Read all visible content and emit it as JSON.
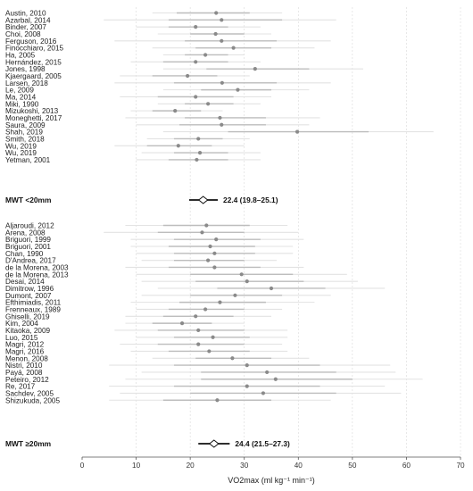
{
  "chart_data": {
    "type": "forest",
    "x_axis": {
      "label": "VO2max (ml kg⁻¹ min⁻¹)",
      "xlim": [
        0,
        70
      ],
      "ticks": [
        0,
        10,
        20,
        30,
        40,
        50,
        60,
        70
      ],
      "grid": true
    },
    "groups": [
      {
        "name": "MWT <20mm",
        "pooled": {
          "label": "MWT <20mm",
          "estimate": 22.4,
          "lower": 19.8,
          "upper": 25.1,
          "text": "22.4 (19.8–25.1)"
        },
        "studies": [
          {
            "name": "Austin, 2010",
            "mean": 24.8,
            "ci": [
              17.5,
              31.0
            ],
            "range": [
              13.0,
              37.0
            ]
          },
          {
            "name": "Azarbal, 2014",
            "mean": 25.8,
            "ci": [
              16.0,
              37.0
            ],
            "range": [
              4.0,
              47.0
            ]
          },
          {
            "name": "Binder, 2007",
            "mean": 21.0,
            "ci": [
              16.0,
              27.0
            ],
            "range": [
              10.0,
              33.0
            ]
          },
          {
            "name": "Choi, 2008",
            "mean": 24.7,
            "ci": [
              20.0,
              30.0
            ],
            "range": [
              14.0,
              35.0
            ]
          },
          {
            "name": "Ferguson, 2016",
            "mean": 25.8,
            "ci": [
              19.0,
              36.0
            ],
            "range": [
              6.0,
              46.0
            ]
          },
          {
            "name": "Finocchiaro, 2015",
            "mean": 28.0,
            "ci": [
              21.0,
              35.0
            ],
            "range": [
              13.0,
              43.0
            ]
          },
          {
            "name": "Ha, 2005",
            "mean": 22.8,
            "ci": [
              19.0,
              27.0
            ],
            "range": [
              15.0,
              30.0
            ]
          },
          {
            "name": "Hernández, 2015",
            "mean": 21.0,
            "ci": [
              15.0,
              27.0
            ],
            "range": [
              9.0,
              33.0
            ]
          },
          {
            "name": "Jones, 1998",
            "mean": 32.0,
            "ci": [
              23.0,
              42.0
            ],
            "range": [
              15.0,
              52.0
            ]
          },
          {
            "name": "Kjaergaard, 2005",
            "mean": 19.5,
            "ci": [
              13.0,
              25.0
            ],
            "range": [
              7.0,
              31.0
            ]
          },
          {
            "name": "Larsen, 2018",
            "mean": 25.9,
            "ci": [
              17.0,
              36.0
            ],
            "range": [
              6.0,
              46.0
            ]
          },
          {
            "name": "Le, 2009",
            "mean": 28.8,
            "ci": [
              22.0,
              35.0
            ],
            "range": [
              15.0,
              42.0
            ]
          },
          {
            "name": "Ma, 2014",
            "mean": 21.0,
            "ci": [
              14.0,
              28.0
            ],
            "range": [
              7.0,
              35.0
            ]
          },
          {
            "name": "Miki, 1990",
            "mean": 23.3,
            "ci": [
              19.0,
              28.0
            ],
            "range": [
              14.0,
              33.0
            ]
          },
          {
            "name": "Mizukoshi, 2013",
            "mean": 17.2,
            "ci": [
              13.0,
              22.0
            ],
            "range": [
              9.0,
              26.0
            ]
          },
          {
            "name": "Moneghetti, 2017",
            "mean": 25.5,
            "ci": [
              19.0,
              34.0
            ],
            "range": [
              8.0,
              44.0
            ]
          },
          {
            "name": "Saura, 2009",
            "mean": 25.8,
            "ci": [
              18.0,
              34.0
            ],
            "range": [
              10.0,
              42.0
            ]
          },
          {
            "name": "Shah, 2019",
            "mean": 39.8,
            "ci": [
              27.0,
              53.0
            ],
            "range": [
              15.0,
              65.0
            ]
          },
          {
            "name": "Smith, 2018",
            "mean": 21.5,
            "ci": [
              17.0,
              26.0
            ],
            "range": [
              12.0,
              31.0
            ]
          },
          {
            "name": "Wu, 2019",
            "mean": 17.8,
            "ci": [
              12.0,
              24.0
            ],
            "range": [
              6.0,
              30.0
            ]
          },
          {
            "name": "Wu, 2019",
            "mean": 21.8,
            "ci": [
              17.0,
              27.0
            ],
            "range": [
              11.0,
              33.0
            ]
          },
          {
            "name": "Yetman, 2001",
            "mean": 21.2,
            "ci": [
              16.0,
              27.0
            ],
            "range": [
              10.0,
              33.0
            ]
          }
        ]
      },
      {
        "name": "MWT ≥20mm",
        "pooled": {
          "label": "MWT ≥20mm",
          "estimate": 24.4,
          "lower": 21.5,
          "upper": 27.3,
          "text": "24.4 (21.5–27.3)"
        },
        "studies": [
          {
            "name": "Aljaroudi, 2012",
            "mean": 23.0,
            "ci": [
              15.0,
              31.0
            ],
            "range": [
              8.0,
              38.0
            ]
          },
          {
            "name": "Arena, 2008",
            "mean": 22.2,
            "ci": [
              14.0,
              30.0
            ],
            "range": [
              4.0,
              40.0
            ]
          },
          {
            "name": "Briguori, 1999",
            "mean": 24.8,
            "ci": [
              17.0,
              33.0
            ],
            "range": [
              9.0,
              41.0
            ]
          },
          {
            "name": "Briguori, 2001",
            "mean": 23.7,
            "ci": [
              16.0,
              32.0
            ],
            "range": [
              9.0,
              39.0
            ]
          },
          {
            "name": "Chan, 1990",
            "mean": 24.5,
            "ci": [
              17.0,
              32.0
            ],
            "range": [
              10.0,
              39.0
            ]
          },
          {
            "name": "D'Andrea, 2017",
            "mean": 23.3,
            "ci": [
              17.0,
              30.0
            ],
            "range": [
              11.0,
              36.0
            ]
          },
          {
            "name": "de la Morena, 2003",
            "mean": 24.5,
            "ci": [
              16.0,
              33.0
            ],
            "range": [
              8.0,
              41.0
            ]
          },
          {
            "name": "de la Morena, 2013",
            "mean": 29.5,
            "ci": [
              20.0,
              39.0
            ],
            "range": [
              10.0,
              49.0
            ]
          },
          {
            "name": "Desai, 2014",
            "mean": 30.5,
            "ci": [
              21.0,
              41.0
            ],
            "range": [
              11.0,
              51.0
            ]
          },
          {
            "name": "Dimitrow, 1996",
            "mean": 35.0,
            "ci": [
              25.0,
              45.0
            ],
            "range": [
              14.0,
              56.0
            ]
          },
          {
            "name": "Dumont, 2007",
            "mean": 28.3,
            "ci": [
              20.0,
              37.0
            ],
            "range": [
              11.0,
              46.0
            ]
          },
          {
            "name": "Efthimiadis, 2011",
            "mean": 25.5,
            "ci": [
              18.0,
              34.0
            ],
            "range": [
              9.0,
              43.0
            ]
          },
          {
            "name": "Frenneaux, 1989",
            "mean": 22.8,
            "ci": [
              16.0,
              30.0
            ],
            "range": [
              10.0,
              37.0
            ]
          },
          {
            "name": "Ghiselli, 2019",
            "mean": 21.0,
            "ci": [
              15.0,
              28.0
            ],
            "range": [
              8.0,
              35.0
            ]
          },
          {
            "name": "Kim, 2004",
            "mean": 18.5,
            "ci": [
              13.0,
              24.0
            ],
            "range": [
              8.0,
              30.0
            ]
          },
          {
            "name": "Kitaoka, 2009",
            "mean": 21.5,
            "ci": [
              14.0,
              30.0
            ],
            "range": [
              6.0,
              38.0
            ]
          },
          {
            "name": "Luo, 2015",
            "mean": 24.2,
            "ci": [
              17.0,
              31.0
            ],
            "range": [
              10.0,
              38.0
            ]
          },
          {
            "name": "Magri, 2012",
            "mean": 21.5,
            "ci": [
              14.0,
              30.0
            ],
            "range": [
              7.0,
              37.0
            ]
          },
          {
            "name": "Magri, 2016",
            "mean": 23.5,
            "ci": [
              16.0,
              31.0
            ],
            "range": [
              9.0,
              38.0
            ]
          },
          {
            "name": "Menon, 2008",
            "mean": 27.8,
            "ci": [
              21.0,
              35.0
            ],
            "range": [
              13.0,
              42.0
            ]
          },
          {
            "name": "Nistri, 2010",
            "mean": 30.5,
            "ci": [
              17.0,
              44.0
            ],
            "range": [
              5.0,
              57.0
            ]
          },
          {
            "name": "Payá, 2008",
            "mean": 34.2,
            "ci": [
              22.0,
              47.0
            ],
            "range": [
              11.0,
              58.0
            ]
          },
          {
            "name": "Peteiro, 2012",
            "mean": 35.8,
            "ci": [
              22.0,
              50.0
            ],
            "range": [
              8.0,
              63.0
            ]
          },
          {
            "name": "Re, 2017",
            "mean": 30.5,
            "ci": [
              17.0,
              44.0
            ],
            "range": [
              5.0,
              56.0
            ]
          },
          {
            "name": "Sachdev, 2005",
            "mean": 33.5,
            "ci": [
              20.0,
              47.0
            ],
            "range": [
              7.0,
              59.0
            ]
          },
          {
            "name": "Shizukuda, 2005",
            "mean": 25.0,
            "ci": [
              15.0,
              35.0
            ],
            "range": [
              5.0,
              46.0
            ]
          }
        ]
      }
    ]
  },
  "colors": {
    "study_marker": "#8a8a8a",
    "ci_inner": "#bdbdbd",
    "ci_outer": "#e3e3e3",
    "pooled_line": "#111111",
    "pooled_diamond_fill": "#ffffff",
    "grid": "#d9d9d9"
  }
}
